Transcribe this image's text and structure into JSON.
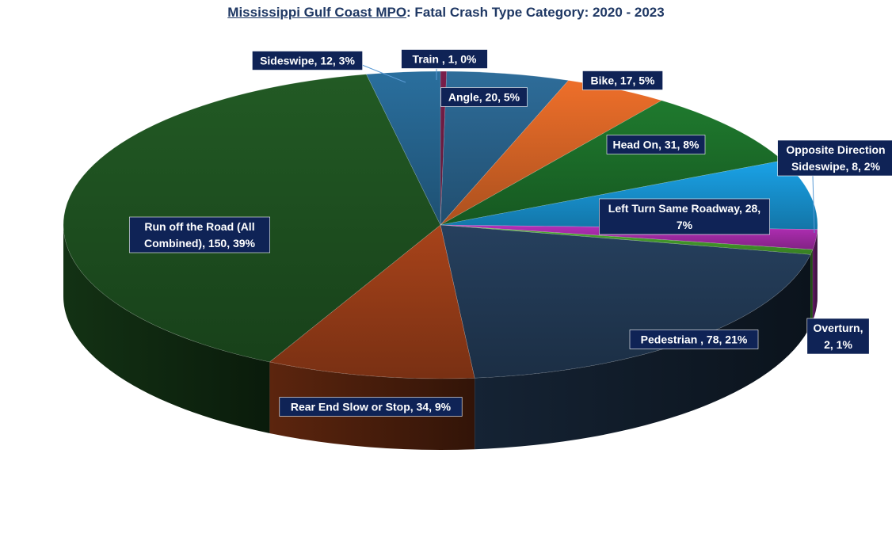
{
  "title": {
    "org": "Mississippi Gulf Coast MPO",
    "rest": ": Fatal Crash Type Category: 2020 - 2023"
  },
  "chart_data": {
    "type": "pie",
    "style": "3d-exploded-none",
    "slices": [
      {
        "category": "Train",
        "value": 1,
        "percent": "0%",
        "label": [
          "Train , 1, 0%"
        ],
        "color": "#7a1f4a"
      },
      {
        "category": "Angle",
        "value": 20,
        "percent": "5%",
        "label": [
          "Angle, 20, 5%"
        ],
        "color": "#2e6d9a"
      },
      {
        "category": "Bike",
        "value": 17,
        "percent": "5%",
        "label": [
          "Bike, 17, 5%"
        ],
        "color": "#ee6f2a"
      },
      {
        "category": "Head On",
        "value": 31,
        "percent": "8%",
        "label": [
          "Head On, 31, 8%"
        ],
        "color": "#1f7a2e"
      },
      {
        "category": "Left Turn Same Roadway",
        "value": 28,
        "percent": "7%",
        "label": [
          "Left Turn Same Roadway, 28,",
          "7%"
        ],
        "color": "#1aa3e8"
      },
      {
        "category": "Opposite Direction Sideswipe",
        "value": 8,
        "percent": "2%",
        "label": [
          "Opposite Direction",
          "Sideswipe, 8, 2%"
        ],
        "color": "#b42fb8"
      },
      {
        "category": "Overturn",
        "value": 2,
        "percent": "1%",
        "label": [
          "Overturn,",
          "2, 1%"
        ],
        "color": "#4caf30"
      },
      {
        "category": "Pedestrian",
        "value": 78,
        "percent": "21%",
        "label": [
          "Pedestrian , 78, 21%"
        ],
        "color": "#26405e"
      },
      {
        "category": "Rear End Slow or Stop",
        "value": 34,
        "percent": "9%",
        "label": [
          "Rear End Slow or Stop, 34, 9%"
        ],
        "color": "#a8431a"
      },
      {
        "category": "Run off the Road (All Combined)",
        "value": 150,
        "percent": "39%",
        "label": [
          "Run off the Road  (All",
          "Combined), 150, 39%"
        ],
        "color": "#225a24"
      },
      {
        "category": "Sideswipe",
        "value": 12,
        "percent": "3%",
        "label": [
          "Sideswipe, 12, 3%"
        ],
        "color": "#2a6f9e"
      }
    ],
    "legend": "none"
  }
}
